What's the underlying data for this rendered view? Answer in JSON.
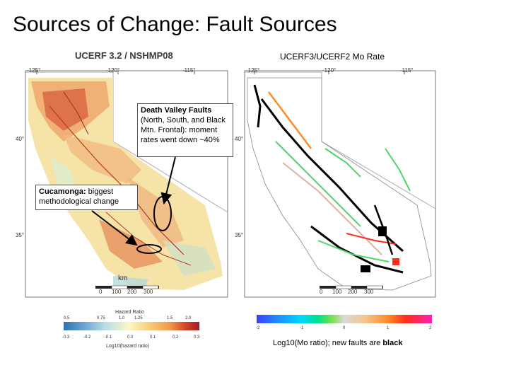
{
  "title": "Sources of Change: Fault Sources",
  "left_panel": {
    "title": "UCERF 3.2 / NSHMP08",
    "lon_ticks": [
      "-125°",
      "-120°",
      "-115°"
    ],
    "lat_ticks": [
      "40°",
      "35°"
    ],
    "scale_unit": "km",
    "scale_ticks": [
      "0",
      "100",
      "200",
      "300"
    ],
    "colorbar_title": "Hazard Ratio",
    "colorbar_top_ticks": [
      "0.5",
      "0.75",
      "1.0",
      "1.25",
      "1.5",
      "2.0"
    ],
    "colorbar_bottom_ticks": [
      "-0.3",
      "-0.2",
      "-0.1",
      "0.0",
      "0.1",
      "0.2",
      "0.3"
    ],
    "colorbar_label": "Log10(hazard ratio)"
  },
  "right_panel": {
    "title": "UCERF3/UCERF2 Mo Rate",
    "lon_ticks": [
      "-125°",
      "-120°",
      "-115°"
    ],
    "lat_ticks": [
      "40°",
      "35°"
    ],
    "scale_ticks": [
      "0",
      "100",
      "200",
      "300"
    ],
    "colorbar_ticks": [
      "-2",
      "-1",
      "0",
      "1",
      "2"
    ],
    "caption_prefix": "Log10(Mo ratio); new faults are ",
    "caption_bold": "black"
  },
  "callouts": {
    "death_valley": {
      "heading": "Death Valley Faults",
      "body": "(North, South, and Black Mtn. Frontal): moment rates went down ~40%"
    },
    "cucamonga": {
      "heading": "Cucamonga:",
      "body": " biggest methodological change"
    }
  },
  "colors": {
    "hazard_high": "#d2452b",
    "hazard_low": "#2e6fb2",
    "mo_increase": "#ff8a2a",
    "mo_decrease": "#4cd66a",
    "new_fault": "#000000"
  }
}
